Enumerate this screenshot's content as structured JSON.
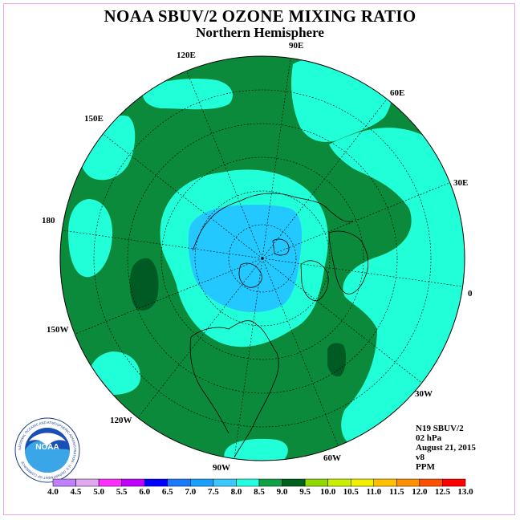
{
  "header": {
    "title": "NOAA SBUV/2 OZONE MIXING RATIO",
    "subtitle": "Northern Hemisphere"
  },
  "map": {
    "projection": "north-polar-stereographic",
    "longitude_labels": [
      {
        "id": "lon-90e",
        "text": "90E"
      },
      {
        "id": "lon-60e",
        "text": "60E"
      },
      {
        "id": "lon-30e",
        "text": "30E"
      },
      {
        "id": "lon-0",
        "text": "0"
      },
      {
        "id": "lon-30w",
        "text": "30W"
      },
      {
        "id": "lon-60w",
        "text": "60W"
      },
      {
        "id": "lon-90w",
        "text": "90W"
      },
      {
        "id": "lon-120w",
        "text": "120W"
      },
      {
        "id": "lon-150w",
        "text": "150W"
      },
      {
        "id": "lon-180",
        "text": "180"
      },
      {
        "id": "lon-150e",
        "text": "150E"
      },
      {
        "id": "lon-120e",
        "text": "120E"
      }
    ]
  },
  "info": {
    "satellite": "N19 SBUV/2",
    "level": "02 hPa",
    "date": "August 21, 2015",
    "version": "v8",
    "units": "PPM"
  },
  "colorbar": {
    "labels": [
      "4.0",
      "4.5",
      "5.0",
      "5.5",
      "6.0",
      "6.5",
      "7.0",
      "7.5",
      "8.0",
      "8.5",
      "9.0",
      "9.5",
      "10.0",
      "10.5",
      "11.0",
      "11.5",
      "12.0",
      "12.5",
      "13.0"
    ],
    "colors": [
      "#c080ff",
      "#e0a8f0",
      "#ff30ff",
      "#c000ff",
      "#0000ff",
      "#1a7aff",
      "#1aa0ff",
      "#3ac8ff",
      "#20ffe0",
      "#10a048",
      "#006020",
      "#90d800",
      "#c8f000",
      "#f0f000",
      "#ffc000",
      "#ff9000",
      "#ff5000",
      "#ff0000",
      "#a05030"
    ]
  },
  "colors": {
    "dark_green": "#0c8a3c",
    "darker_green": "#005a24",
    "aqua": "#20ffd8",
    "light_blue": "#22c8ff",
    "border": "#e6a8e6"
  },
  "logo": {
    "text": "NOAA",
    "ring_text": "NATIONAL OCEANIC AND ATMOSPHERIC ADMINISTRATION · U.S. DEPARTMENT OF COMMERCE"
  }
}
